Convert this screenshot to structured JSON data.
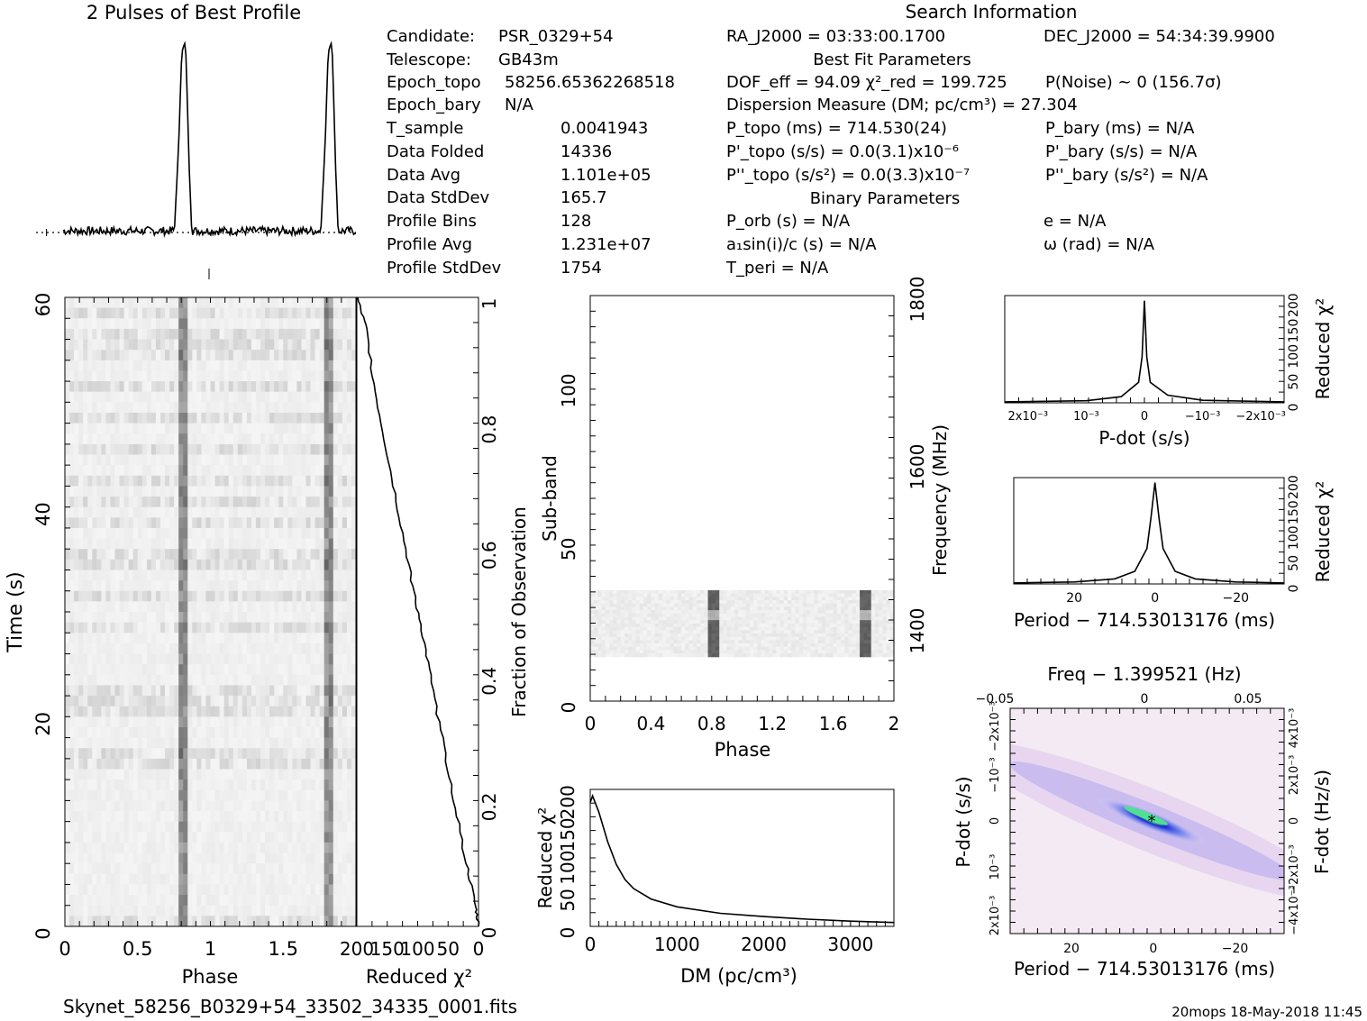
{
  "title": "2 Pulses of Best Profile",
  "search_header": "Search Information",
  "best_fit_header": "Best Fit Parameters",
  "binary_header": "Binary Parameters",
  "filename": "Skynet_58256_B0329+54_33502_34335_0001.fits",
  "footer": "20mops 18-May-2018 11:45",
  "info_left": [
    {
      "label": "Candidate:",
      "value": "PSR_0329+54"
    },
    {
      "label": "Telescope:",
      "value": "GB43m"
    },
    {
      "label": "Epoch_topo =",
      "value": "58256.65362268518"
    },
    {
      "label": "Epoch_bary =",
      "value": "N/A"
    },
    {
      "label": "T_sample =",
      "value": "0.0041943"
    },
    {
      "label": "Data Folded =",
      "value": "14336"
    },
    {
      "label": "Data Avg =",
      "value": "1.101e+05"
    },
    {
      "label": "Data StdDev =",
      "value": "165.7"
    },
    {
      "label": "Profile Bins =",
      "value": "128"
    },
    {
      "label": "Profile Avg =",
      "value": "1.231e+07"
    },
    {
      "label": "Profile StdDev =",
      "value": "1754"
    }
  ],
  "info_mid": [
    "RA_J2000 = 03:33:00.1700",
    "DOF_eff = 94.09  χ²_red = 199.725",
    "Dispersion Measure (DM; pc/cm³) = 27.304",
    "P_topo (ms) = 714.530(24)",
    "P'_topo (s/s) = 0.0(3.1)x10⁻⁶",
    "P''_topo (s/s²) = 0.0(3.3)x10⁻⁷",
    "P_orb (s) = N/A",
    "a₁sin(i)/c (s) = N/A",
    "T_peri = N/A"
  ],
  "info_right": [
    "DEC_J2000 = 54:34:39.9900",
    "P(Noise) ~ 0   (156.7σ)",
    "P_bary (ms) = N/A",
    "P'_bary (s/s) = N/A",
    "P''_bary (s/s²) = N/A",
    "e = N/A",
    "ω (rad) = N/A"
  ],
  "chart_data": [
    {
      "type": "line",
      "name": "profile",
      "title": "2 Pulses of Best Profile",
      "x": [
        0,
        0.76,
        0.79,
        0.81,
        0.83,
        0.84,
        0.86,
        0.88,
        1.0,
        1.76,
        1.79,
        1.81,
        1.83,
        1.84,
        1.86,
        1.88,
        2.0
      ],
      "y": [
        0.08,
        0.08,
        0.5,
        0.92,
        0.97,
        0.9,
        0.4,
        0.05,
        0.08,
        0.08,
        0.5,
        0.92,
        0.97,
        0.9,
        0.4,
        0.05,
        0.08
      ]
    },
    {
      "type": "heatmap",
      "name": "time-phase",
      "xlabel": "Phase",
      "ylabel": "Time (s)",
      "xlim": [
        0,
        2
      ],
      "ylim": [
        0,
        60
      ],
      "xticks": [
        "0",
        "0.5",
        "1",
        "1.5"
      ],
      "yticks": [
        "0",
        "20",
        "40",
        "60"
      ],
      "pulse_phases": [
        0.82,
        1.82
      ]
    },
    {
      "type": "line",
      "name": "chi2-vs-fraction",
      "xlabel": "Reduced χ²",
      "ylabel": "Fraction of Observation",
      "xticks": [
        "200",
        "150",
        "100",
        "50",
        "0"
      ],
      "yticks": [
        "0",
        "0.2",
        "0.4",
        "0.6",
        "0.8",
        "1"
      ],
      "x": [
        200,
        185,
        170,
        150,
        130,
        110,
        95,
        80,
        60,
        40,
        20,
        5,
        0
      ],
      "y": [
        1.0,
        0.95,
        0.85,
        0.75,
        0.65,
        0.55,
        0.48,
        0.4,
        0.3,
        0.2,
        0.1,
        0.03,
        0.0
      ]
    },
    {
      "type": "heatmap",
      "name": "subband-phase",
      "xlabel": "Phase",
      "ylabel": "Sub-band",
      "y2label": "Frequency (MHz)",
      "xlim": [
        0,
        2
      ],
      "ylim": [
        0,
        128
      ],
      "xticks": [
        "0",
        "0.4",
        "0.8",
        "1.2",
        "1.6",
        "2"
      ],
      "yticks": [
        "0",
        "50",
        "100"
      ],
      "y2ticks": [
        "1400",
        "1600",
        "1800"
      ],
      "band_subbands": [
        14,
        35
      ],
      "pulse_phases": [
        0.81,
        1.81
      ]
    },
    {
      "type": "line",
      "name": "dm-curve",
      "xlabel": "DM (pc/cm³)",
      "ylabel": "Reduced χ²",
      "xlim": [
        0,
        3500
      ],
      "ylim": [
        0,
        210
      ],
      "xticks": [
        "0",
        "1000",
        "2000",
        "3000"
      ],
      "yticks": [
        "0",
        "50",
        "100",
        "150",
        "200"
      ],
      "x": [
        0,
        27,
        100,
        200,
        300,
        400,
        500,
        700,
        1000,
        1500,
        2000,
        2500,
        3000,
        3500
      ],
      "y": [
        190,
        200,
        175,
        130,
        95,
        72,
        58,
        42,
        30,
        20,
        15,
        11,
        8,
        6
      ]
    },
    {
      "type": "line",
      "name": "pdot-curve",
      "xlabel": "P-dot (s/s)",
      "ylabel": "Reduced χ²",
      "xticks": [
        "2x10⁻³",
        "10⁻³",
        "0",
        "−10⁻³",
        "−2x10⁻³"
      ],
      "yticks": [
        "0",
        "50",
        "100",
        "150",
        "200"
      ],
      "x": [
        0.0024,
        0.001,
        0.0004,
        0.0001,
        4e-05,
        0,
        -4e-05,
        -0.0001,
        -0.0004,
        -0.001,
        -0.0024
      ],
      "y": [
        2,
        4,
        12,
        40,
        90,
        200,
        90,
        40,
        15,
        5,
        2
      ]
    },
    {
      "type": "line",
      "name": "period-curve",
      "xlabel": "Period − 714.53013176 (ms)",
      "ylabel": "Reduced χ²",
      "xticks": [
        "20",
        "0",
        "−20"
      ],
      "yticks": [
        "0",
        "50",
        "100",
        "150",
        "200"
      ],
      "x": [
        35,
        20,
        10,
        5,
        2,
        1,
        0,
        -1,
        -2,
        -5,
        -10,
        -20,
        -32
      ],
      "y": [
        2,
        4,
        10,
        25,
        70,
        130,
        200,
        130,
        70,
        25,
        10,
        4,
        2
      ]
    },
    {
      "type": "heatmap",
      "name": "p-pdot",
      "xlabel": "Period − 714.53013176 (ms)",
      "ylabel": "P-dot (s/s)",
      "x2label": "Freq − 1.399521 (Hz)",
      "y2label": "F-dot (Hz/s)",
      "xticks": [
        "20",
        "0",
        "−20"
      ],
      "yticks": [
        "2x10⁻³",
        "10⁻³",
        "0",
        "−10⁻³",
        "−2x10⁻³"
      ],
      "x2ticks": [
        "−0.05",
        "0",
        "0.05"
      ],
      "y2ticks": [
        "−4x10⁻³",
        "−2x10⁻³",
        "0",
        "2x10⁻³",
        "4x10⁻³"
      ]
    }
  ]
}
